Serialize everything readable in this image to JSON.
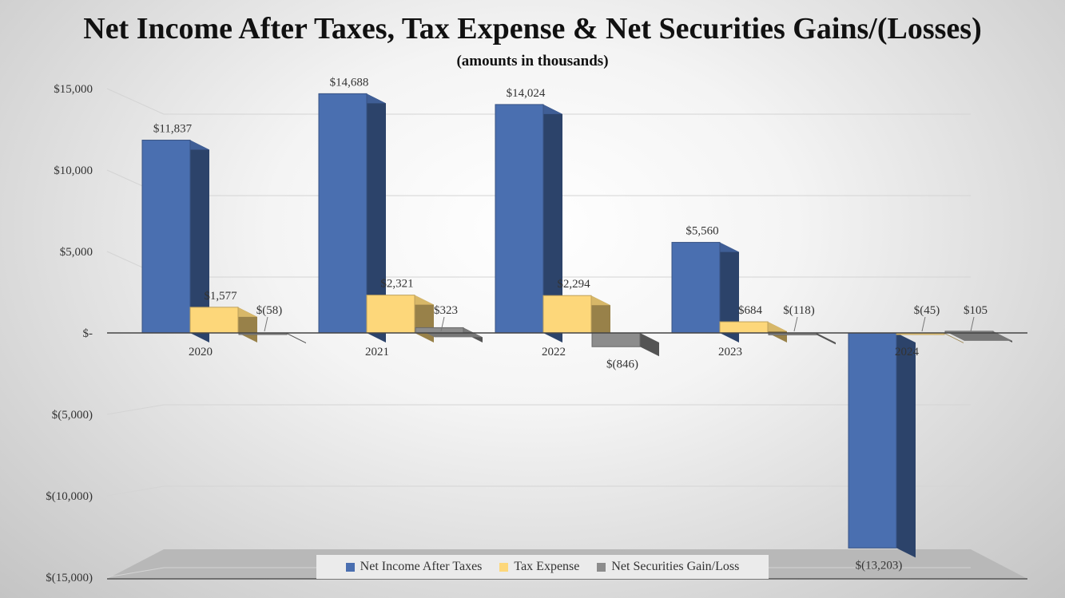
{
  "chart_data": {
    "type": "bar",
    "title": "Net Income After Taxes, Tax Expense & Net Securities Gains/(Losses)",
    "subtitle": "(amounts in thousands)",
    "categories": [
      "2020",
      "2021",
      "2022",
      "2023",
      "2024"
    ],
    "series": [
      {
        "name": "Net Income After Taxes",
        "values": [
          11837,
          14688,
          14024,
          5560,
          -13203
        ],
        "labels": [
          "$11,837",
          "$14,688",
          "$14,024",
          "$5,560",
          "$(13,203)"
        ],
        "color": "#4a6fb0"
      },
      {
        "name": "Tax Expense",
        "values": [
          1577,
          2321,
          2294,
          684,
          -45
        ],
        "labels": [
          "$1,577",
          "$2,321",
          "$2,294",
          "$684",
          "$(45)"
        ],
        "color": "#fdd77a"
      },
      {
        "name": "Net Securities Gain/Loss",
        "values": [
          -58,
          323,
          -846,
          -118,
          105
        ],
        "labels": [
          "$(58)",
          "$323",
          "$(846)",
          "$(118)",
          "$105"
        ],
        "color": "#8c8c8c"
      }
    ],
    "y_ticks": [
      15000,
      10000,
      5000,
      0,
      -5000,
      -10000,
      -15000
    ],
    "y_tick_labels": [
      "$15,000",
      "$10,000",
      "$5,000",
      "$-",
      "$(5,000)",
      "$(10,000)",
      "$(15,000)"
    ],
    "ylim": [
      -15000,
      15000
    ],
    "grid": true,
    "legend_position": "bottom"
  }
}
